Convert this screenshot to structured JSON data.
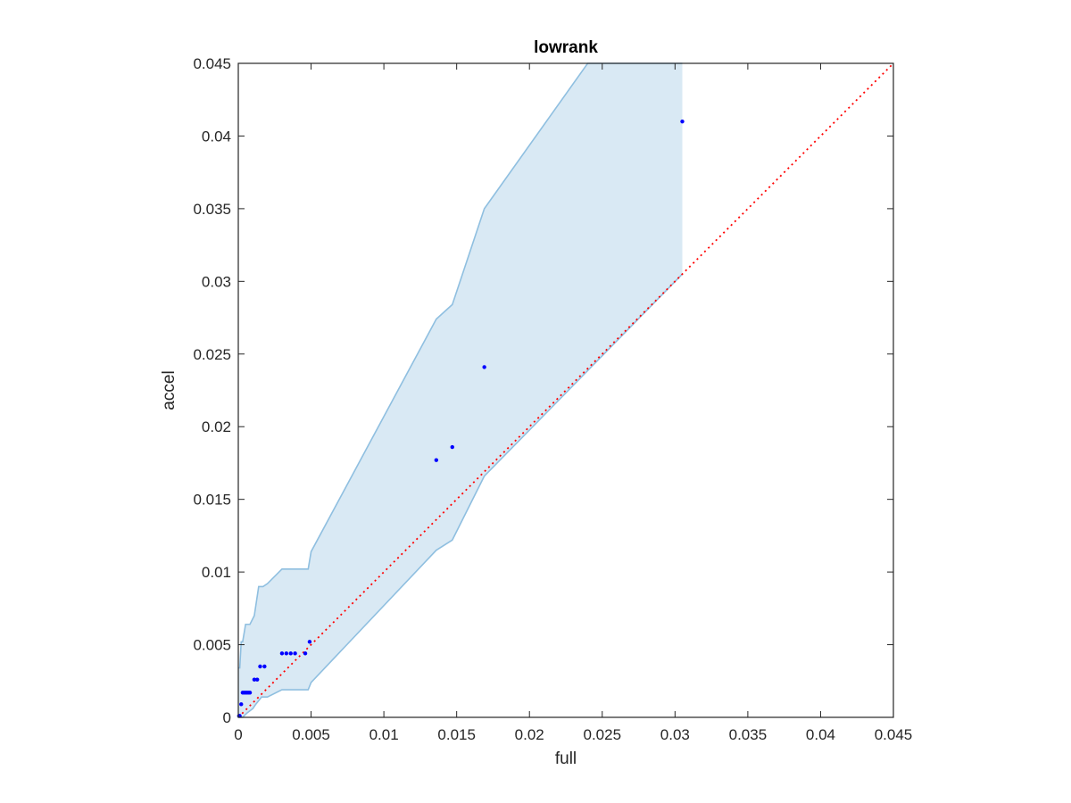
{
  "chart_data": {
    "type": "scatter",
    "title": "lowrank",
    "xlabel": "full",
    "ylabel": "accel",
    "xlim": [
      0,
      0.045
    ],
    "ylim": [
      0,
      0.045
    ],
    "xticks": [
      "0",
      "0.005",
      "0.01",
      "0.015",
      "0.02",
      "0.025",
      "0.03",
      "0.035",
      "0.04",
      "0.045"
    ],
    "yticks": [
      "0",
      "0.005",
      "0.01",
      "0.015",
      "0.02",
      "0.025",
      "0.03",
      "0.035",
      "0.04",
      "0.045"
    ],
    "grid": false,
    "legend": "none",
    "colors": {
      "points": "#0000ff",
      "band_fill": "#d9e9f4",
      "band_edge": "#8fbfe0",
      "reference_line": "#ff0000",
      "axes": "#262626"
    },
    "points": {
      "x": [
        5e-05,
        0.0001,
        0.0002,
        0.0003,
        0.0004,
        0.0005,
        0.0006,
        0.0007,
        0.0008,
        0.0011,
        0.0013,
        0.0015,
        0.0018,
        0.003,
        0.0033,
        0.0036,
        0.0039,
        0.0046,
        0.0049,
        0.0136,
        0.0147,
        0.0169,
        0.0305
      ],
      "y": [
        0.0001,
        0.0001,
        0.0009,
        0.0017,
        0.0017,
        0.0017,
        0.0017,
        0.0017,
        0.0017,
        0.0026,
        0.0026,
        0.0035,
        0.0035,
        0.0044,
        0.0044,
        0.0044,
        0.0044,
        0.0044,
        0.0052,
        0.0177,
        0.0186,
        0.0241,
        0.041
      ]
    },
    "band_upper": {
      "x": [
        0,
        0.0001,
        0.0002,
        0.0003,
        0.0005,
        0.0008,
        0.0011,
        0.0014,
        0.0017,
        0.002,
        0.003,
        0.0048,
        0.005,
        0.0136,
        0.0147,
        0.0169,
        0.024,
        0.0305
      ],
      "y": [
        0.0034,
        0.0034,
        0.0052,
        0.0052,
        0.0064,
        0.0064,
        0.007,
        0.009,
        0.009,
        0.0092,
        0.0102,
        0.0102,
        0.0114,
        0.0274,
        0.0284,
        0.035,
        0.045,
        0.045
      ]
    },
    "band_lower": {
      "x": [
        0,
        0.0003,
        0.0006,
        0.001,
        0.0012,
        0.0016,
        0.002,
        0.003,
        0.0048,
        0.005,
        0.0136,
        0.0147,
        0.0169,
        0.0305
      ],
      "y": [
        0,
        0,
        0.0003,
        0.0006,
        0.0009,
        0.0014,
        0.0014,
        0.0019,
        0.0019,
        0.0024,
        0.0115,
        0.0122,
        0.0166,
        0.0305
      ]
    },
    "reference_line": {
      "x": [
        0,
        0.045
      ],
      "y": [
        0,
        0.045
      ],
      "style": "dotted"
    }
  }
}
